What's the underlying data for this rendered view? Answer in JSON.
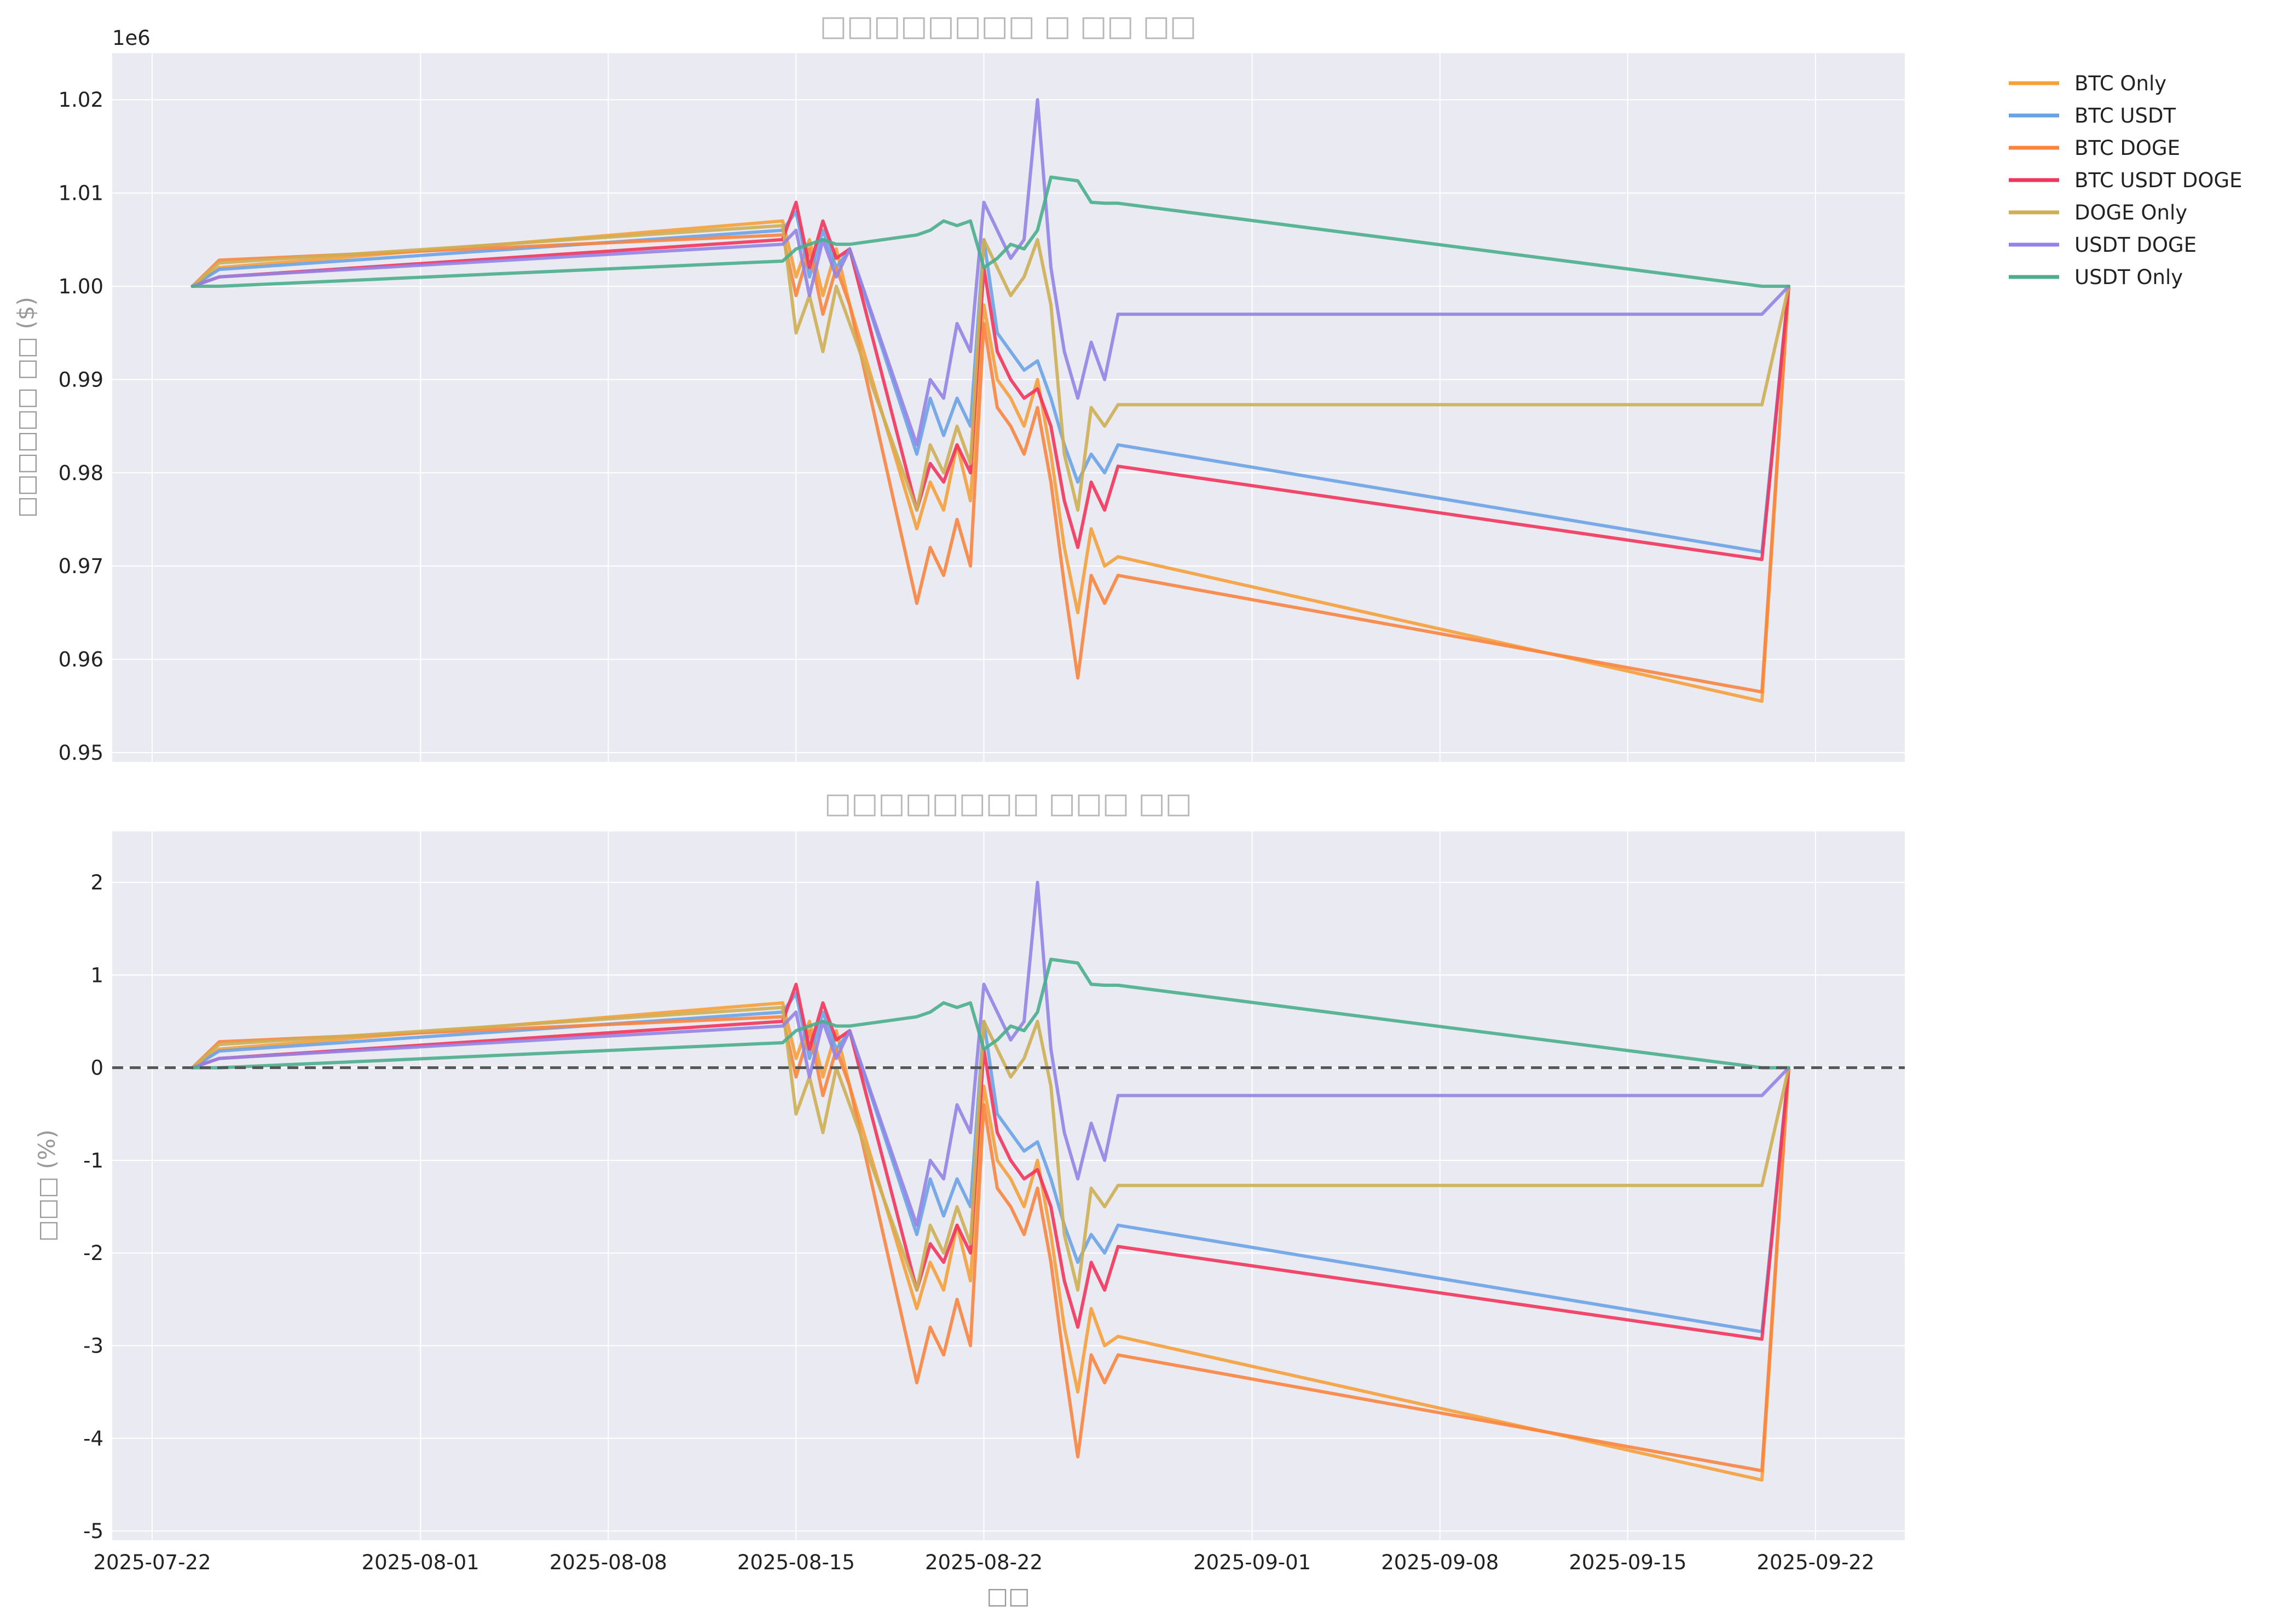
{
  "colors": {
    "BTC Only": "#F5A03A",
    "BTC USDT": "#6AA3E5",
    "BTC DOGE": "#FA8540",
    "BTC USDT DOGE": "#F2355C",
    "DOGE Only": "#CDAF55",
    "USDT DOGE": "#9483E6",
    "USDT Only": "#4AAE8C"
  },
  "chart_data": [
    {
      "type": "line",
      "title": "□□□□□□□□ □ □□ □□",
      "xlabel": "",
      "ylabel": "□□□□□□ □□ ($)",
      "offset_text": "1e6",
      "x_ticks": [
        "2025-07-22",
        "2025-08-01",
        "2025-08-08",
        "2025-08-15",
        "2025-08-22",
        "2025-09-01",
        "2025-09-08",
        "2025-09-15",
        "2025-09-22"
      ],
      "y_ticks": [
        "0.95",
        "0.96",
        "0.97",
        "0.98",
        "0.99",
        "1.00",
        "1.01",
        "1.02"
      ],
      "ylim": [
        0.949,
        1.025
      ],
      "grid": true,
      "x": [
        "2025-07-23.5",
        "2025-07-24.5",
        "2025-08-14.5",
        "2025-08-15",
        "2025-08-15.5",
        "2025-08-16",
        "2025-08-16.5",
        "2025-08-17",
        "2025-08-19.5",
        "2025-08-20",
        "2025-08-20.5",
        "2025-08-21",
        "2025-08-21.5",
        "2025-08-22",
        "2025-08-22.5",
        "2025-08-23",
        "2025-08-23.5",
        "2025-08-24",
        "2025-08-24.5",
        "2025-08-25",
        "2025-08-25.5",
        "2025-08-26",
        "2025-08-26.5",
        "2025-08-27",
        "2025-09-20",
        "2025-09-21"
      ],
      "series": [
        {
          "name": "BTC Only",
          "values": [
            1.0,
            1.002,
            1.007,
            1.001,
            1.005,
            0.999,
            1.004,
            0.998,
            0.974,
            0.979,
            0.976,
            0.983,
            0.977,
            0.998,
            0.99,
            0.988,
            0.985,
            0.99,
            0.982,
            0.972,
            0.965,
            0.974,
            0.97,
            0.971,
            0.9555,
            1.0
          ]
        },
        {
          "name": "BTC USDT",
          "values": [
            1.0,
            1.0018,
            1.006,
            1.008,
            1.001,
            1.006,
            1.002,
            1.004,
            0.982,
            0.988,
            0.984,
            0.988,
            0.985,
            1.005,
            0.995,
            0.993,
            0.991,
            0.992,
            0.988,
            0.983,
            0.979,
            0.982,
            0.98,
            0.983,
            0.9715,
            1.0
          ]
        },
        {
          "name": "BTC DOGE",
          "values": [
            1.0,
            1.0028,
            1.0055,
            0.999,
            1.004,
            0.997,
            1.002,
            0.998,
            0.966,
            0.972,
            0.969,
            0.975,
            0.97,
            0.996,
            0.987,
            0.985,
            0.982,
            0.987,
            0.979,
            0.968,
            0.958,
            0.969,
            0.966,
            0.969,
            0.9565,
            1.0
          ]
        },
        {
          "name": "BTC USDT DOGE",
          "values": [
            1.0,
            1.001,
            1.005,
            1.009,
            1.002,
            1.007,
            1.003,
            1.004,
            0.976,
            0.981,
            0.979,
            0.983,
            0.98,
            1.002,
            0.993,
            0.99,
            0.988,
            0.989,
            0.985,
            0.977,
            0.972,
            0.979,
            0.976,
            0.9807,
            0.9707,
            1.0
          ]
        },
        {
          "name": "DOGE Only",
          "values": [
            1.0,
            1.0025,
            1.0065,
            0.995,
            0.999,
            0.993,
            1.0,
            0.996,
            0.976,
            0.983,
            0.98,
            0.985,
            0.981,
            1.005,
            1.002,
            0.999,
            1.001,
            1.005,
            0.998,
            0.982,
            0.976,
            0.987,
            0.985,
            0.9873,
            0.9873,
            1.0
          ]
        },
        {
          "name": "USDT DOGE",
          "values": [
            1.0,
            1.001,
            1.0045,
            1.006,
            0.999,
            1.005,
            1.001,
            1.004,
            0.983,
            0.99,
            0.988,
            0.996,
            0.993,
            1.009,
            1.006,
            1.003,
            1.005,
            1.02,
            1.002,
            0.993,
            0.988,
            0.994,
            0.99,
            0.997,
            0.997,
            1.0
          ]
        },
        {
          "name": "USDT Only",
          "values": [
            1.0,
            1.0,
            1.0027,
            1.004,
            1.0045,
            1.005,
            1.0045,
            1.0045,
            1.0055,
            1.006,
            1.007,
            1.0065,
            1.007,
            1.002,
            1.003,
            1.0045,
            1.004,
            1.006,
            1.0117,
            1.0115,
            1.0113,
            1.009,
            1.0089,
            1.0089,
            1.0,
            1.0
          ]
        }
      ]
    },
    {
      "type": "line",
      "title": "□□□□□□□□ □□□ □□",
      "xlabel": "□□",
      "ylabel": "□□□ (%)",
      "x_ticks": [
        "2025-07-22",
        "2025-08-01",
        "2025-08-08",
        "2025-08-15",
        "2025-08-22",
        "2025-09-01",
        "2025-09-08",
        "2025-09-15",
        "2025-09-22"
      ],
      "y_ticks": [
        "-5",
        "-4",
        "-3",
        "-2",
        "-1",
        "0",
        "1",
        "2"
      ],
      "ylim": [
        -5.1,
        2.55
      ],
      "grid": true,
      "reference_line": 0,
      "x": [
        "2025-07-23.5",
        "2025-07-24.5",
        "2025-08-14.5",
        "2025-08-15",
        "2025-08-15.5",
        "2025-08-16",
        "2025-08-16.5",
        "2025-08-17",
        "2025-08-19.5",
        "2025-08-20",
        "2025-08-20.5",
        "2025-08-21",
        "2025-08-21.5",
        "2025-08-22",
        "2025-08-22.5",
        "2025-08-23",
        "2025-08-23.5",
        "2025-08-24",
        "2025-08-24.5",
        "2025-08-25",
        "2025-08-25.5",
        "2025-08-26",
        "2025-08-26.5",
        "2025-08-27",
        "2025-09-20",
        "2025-09-21"
      ],
      "series": [
        {
          "name": "BTC Only",
          "values": [
            0.0,
            0.2,
            0.7,
            0.1,
            0.5,
            -0.1,
            0.4,
            -0.2,
            -2.6,
            -2.1,
            -2.4,
            -1.7,
            -2.3,
            -0.2,
            -1.0,
            -1.2,
            -1.5,
            -1.0,
            -1.8,
            -2.8,
            -3.5,
            -2.6,
            -3.0,
            -2.9,
            -4.45,
            0.0
          ]
        },
        {
          "name": "BTC USDT",
          "values": [
            0.0,
            0.18,
            0.6,
            0.8,
            0.1,
            0.6,
            0.2,
            0.4,
            -1.8,
            -1.2,
            -1.6,
            -1.2,
            -1.5,
            0.5,
            -0.5,
            -0.7,
            -0.9,
            -0.8,
            -1.2,
            -1.7,
            -2.1,
            -1.8,
            -2.0,
            -1.7,
            -2.85,
            0.0
          ]
        },
        {
          "name": "BTC DOGE",
          "values": [
            0.0,
            0.28,
            0.55,
            -0.1,
            0.4,
            -0.3,
            0.2,
            -0.2,
            -3.4,
            -2.8,
            -3.1,
            -2.5,
            -3.0,
            -0.4,
            -1.3,
            -1.5,
            -1.8,
            -1.3,
            -2.1,
            -3.2,
            -4.2,
            -3.1,
            -3.4,
            -3.1,
            -4.35,
            0.0
          ]
        },
        {
          "name": "BTC USDT DOGE",
          "values": [
            0.0,
            0.1,
            0.5,
            0.9,
            0.2,
            0.7,
            0.3,
            0.4,
            -2.4,
            -1.9,
            -2.1,
            -1.7,
            -2.0,
            0.2,
            -0.7,
            -1.0,
            -1.2,
            -1.1,
            -1.5,
            -2.3,
            -2.8,
            -2.1,
            -2.4,
            -1.93,
            -2.93,
            0.0
          ]
        },
        {
          "name": "DOGE Only",
          "values": [
            0.0,
            0.25,
            0.65,
            -0.5,
            -0.1,
            -0.7,
            0.0,
            -0.4,
            -2.4,
            -1.7,
            -2.0,
            -1.5,
            -1.9,
            0.5,
            0.2,
            -0.1,
            0.1,
            0.5,
            -0.2,
            -1.8,
            -2.4,
            -1.3,
            -1.5,
            -1.27,
            -1.27,
            0.0
          ]
        },
        {
          "name": "USDT DOGE",
          "values": [
            0.0,
            0.1,
            0.45,
            0.6,
            -0.1,
            0.5,
            0.1,
            0.4,
            -1.7,
            -1.0,
            -1.2,
            -0.4,
            -0.7,
            0.9,
            0.6,
            0.3,
            0.5,
            2.0,
            0.2,
            -0.7,
            -1.2,
            -0.6,
            -1.0,
            -0.3,
            -0.3,
            0.0
          ]
        },
        {
          "name": "USDT Only",
          "values": [
            0.0,
            0.0,
            0.27,
            0.4,
            0.45,
            0.5,
            0.45,
            0.45,
            0.55,
            0.6,
            0.7,
            0.65,
            0.7,
            0.2,
            0.3,
            0.45,
            0.4,
            0.6,
            1.17,
            1.15,
            1.13,
            0.9,
            0.89,
            0.89,
            0.0,
            0.0
          ]
        }
      ]
    }
  ]
}
